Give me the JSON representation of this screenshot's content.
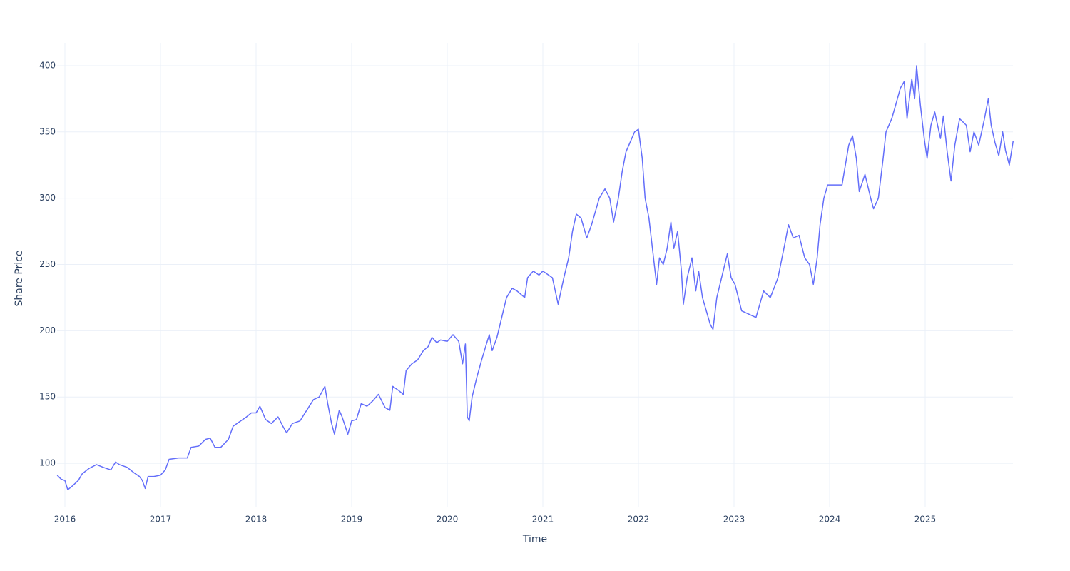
{
  "chart_data": {
    "type": "line",
    "x_label": "Time",
    "y_label": "Share Price",
    "x": [
      2015.92,
      2015.96,
      2016.0,
      2016.03,
      2016.08,
      2016.14,
      2016.18,
      2016.25,
      2016.33,
      2016.4,
      2016.48,
      2016.53,
      2016.57,
      2016.65,
      2016.72,
      2016.78,
      2016.81,
      2016.84,
      2016.87,
      2016.93,
      2017.0,
      2017.05,
      2017.09,
      2017.19,
      2017.28,
      2017.32,
      2017.4,
      2017.47,
      2017.52,
      2017.57,
      2017.63,
      2017.71,
      2017.76,
      2017.82,
      2017.9,
      2017.95,
      2018.0,
      2018.04,
      2018.1,
      2018.16,
      2018.23,
      2018.28,
      2018.32,
      2018.38,
      2018.46,
      2018.53,
      2018.6,
      2018.66,
      2018.72,
      2018.75,
      2018.79,
      2018.82,
      2018.87,
      2018.9,
      2018.96,
      2019.0,
      2019.05,
      2019.1,
      2019.16,
      2019.22,
      2019.28,
      2019.35,
      2019.4,
      2019.43,
      2019.49,
      2019.54,
      2019.57,
      2019.63,
      2019.69,
      2019.75,
      2019.8,
      2019.84,
      2019.89,
      2019.93,
      2020.0,
      2020.06,
      2020.12,
      2020.16,
      2020.19,
      2020.21,
      2020.23,
      2020.26,
      2020.31,
      2020.36,
      2020.41,
      2020.44,
      2020.47,
      2020.52,
      2020.57,
      2020.62,
      2020.68,
      2020.73,
      2020.81,
      2020.84,
      2020.9,
      2020.96,
      2021.0,
      2021.1,
      2021.16,
      2021.22,
      2021.27,
      2021.31,
      2021.35,
      2021.4,
      2021.46,
      2021.51,
      2021.59,
      2021.65,
      2021.7,
      2021.74,
      2021.79,
      2021.83,
      2021.87,
      2021.93,
      2021.96,
      2022.0,
      2022.04,
      2022.07,
      2022.11,
      2022.15,
      2022.19,
      2022.22,
      2022.26,
      2022.3,
      2022.34,
      2022.37,
      2022.41,
      2022.45,
      2022.47,
      2022.51,
      2022.56,
      2022.6,
      2022.63,
      2022.67,
      2022.71,
      2022.75,
      2022.78,
      2022.82,
      2022.87,
      2022.93,
      2022.97,
      2023.01,
      2023.08,
      2023.23,
      2023.31,
      2023.38,
      2023.46,
      2023.53,
      2023.57,
      2023.62,
      2023.68,
      2023.74,
      2023.79,
      2023.83,
      2023.87,
      2023.9,
      2023.94,
      2023.98,
      2024.13,
      2024.2,
      2024.24,
      2024.28,
      2024.31,
      2024.37,
      2024.43,
      2024.46,
      2024.51,
      2024.56,
      2024.59,
      2024.65,
      2024.69,
      2024.74,
      2024.78,
      2024.81,
      2024.86,
      2024.89,
      2024.91,
      2024.95,
      2024.99,
      2025.02,
      2025.06,
      2025.1,
      2025.16,
      2025.19,
      2025.23,
      2025.27,
      2025.31,
      2025.36,
      2025.43,
      2025.47,
      2025.51,
      2025.56,
      2025.62,
      2025.66,
      2025.69,
      2025.73,
      2025.77,
      2025.81,
      2025.84,
      2025.88,
      2025.92
    ],
    "series": [
      {
        "name": "Share Price",
        "color": "#636efa",
        "values": [
          91,
          88,
          87,
          80,
          83,
          87,
          92,
          96,
          99,
          97,
          95,
          101,
          99,
          97,
          93,
          90,
          87,
          81,
          90,
          90,
          91,
          95,
          103,
          104,
          104,
          112,
          113,
          118,
          119,
          112,
          112,
          118,
          128,
          131,
          135,
          138,
          138,
          143,
          133,
          130,
          135,
          128,
          123,
          130,
          132,
          140,
          148,
          150,
          158,
          145,
          130,
          122,
          140,
          135,
          122,
          132,
          133,
          145,
          143,
          147,
          152,
          142,
          140,
          158,
          155,
          152,
          170,
          175,
          178,
          185,
          188,
          195,
          191,
          193,
          192,
          197,
          192,
          175,
          190,
          135,
          132,
          150,
          165,
          178,
          190,
          197,
          185,
          195,
          210,
          225,
          232,
          230,
          225,
          240,
          245,
          242,
          245,
          240,
          220,
          240,
          255,
          275,
          288,
          285,
          270,
          280,
          300,
          307,
          300,
          282,
          300,
          320,
          335,
          345,
          350,
          352,
          330,
          300,
          285,
          260,
          235,
          255,
          250,
          262,
          282,
          262,
          275,
          245,
          220,
          240,
          255,
          230,
          245,
          225,
          215,
          205,
          201,
          225,
          240,
          258,
          240,
          235,
          215,
          210,
          230,
          225,
          240,
          265,
          280,
          270,
          272,
          255,
          250,
          235,
          255,
          280,
          300,
          310,
          310,
          340,
          347,
          330,
          305,
          318,
          300,
          292,
          300,
          330,
          350,
          360,
          370,
          383,
          388,
          360,
          390,
          375,
          400,
          370,
          345,
          330,
          355,
          365,
          345,
          362,
          335,
          313,
          340,
          360,
          355,
          335,
          350,
          340,
          360,
          375,
          355,
          342,
          332,
          350,
          336,
          325,
          343
        ]
      }
    ],
    "xlim": [
      2015.918,
      2025.918
    ],
    "xticks": [
      2016,
      2017,
      2018,
      2019,
      2020,
      2021,
      2022,
      2023,
      2024,
      2025
    ],
    "ylim": [
      67.2,
      417.2
    ],
    "yticks": [
      100,
      150,
      200,
      250,
      300,
      350,
      400
    ],
    "grid": true
  }
}
